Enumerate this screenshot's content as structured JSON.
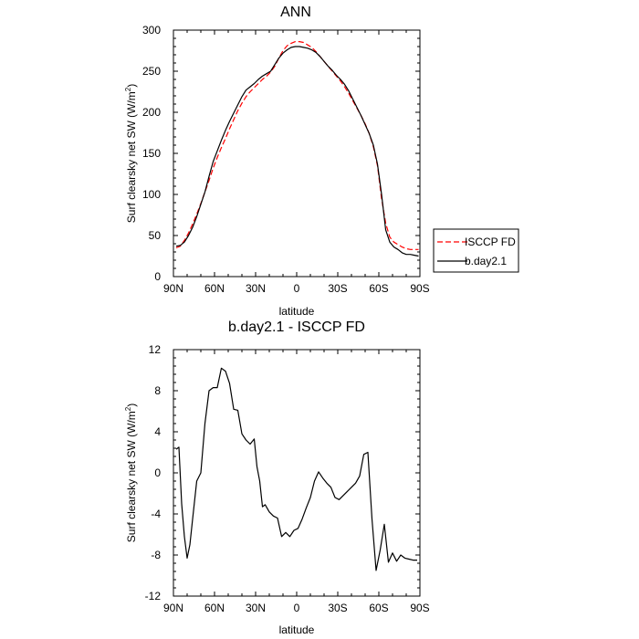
{
  "chart_data": [
    {
      "type": "line",
      "title": "ANN",
      "xlabel": "latitude",
      "ylabel_main": "Surf clearsky net SW (W/m",
      "ylabel_sup": "2",
      "ylabel_tail": ")",
      "xlim": [
        -90,
        90
      ],
      "ylim": [
        0,
        300
      ],
      "xticks": [
        -90,
        -60,
        -30,
        0,
        30,
        60,
        90
      ],
      "xtick_labels": [
        "90N",
        "60N",
        "30N",
        "0",
        "30S",
        "60S",
        "90S"
      ],
      "yticks": [
        0,
        50,
        100,
        150,
        200,
        250,
        300
      ],
      "ytick_labels": [
        "0",
        "50",
        "100",
        "150",
        "200",
        "250",
        "300"
      ],
      "series": [
        {
          "name": "ISCCP FD",
          "color": "#ff0000",
          "dash": "dashed",
          "x": [
            -88,
            -85,
            -82,
            -79,
            -76,
            -73,
            -70,
            -67,
            -64,
            -61,
            -58,
            -55,
            -52,
            -49,
            -46,
            -43,
            -40,
            -37,
            -34,
            -31,
            -28,
            -25,
            -22,
            -19,
            -16,
            -13,
            -10,
            -7,
            -4,
            -1,
            2,
            5,
            8,
            11,
            14,
            17,
            20,
            23,
            26,
            29,
            32,
            35,
            38,
            41,
            44,
            47,
            50,
            53,
            56,
            59,
            62,
            65,
            68,
            71,
            74,
            77,
            80,
            83,
            86,
            89
          ],
          "y": [
            35,
            37,
            44,
            53,
            64,
            76,
            89,
            103,
            117,
            132,
            145,
            157,
            168,
            180,
            191,
            202,
            211,
            219,
            225,
            230,
            235,
            240,
            244,
            249,
            256,
            266,
            275,
            281,
            284,
            286,
            286,
            285,
            282,
            279,
            274,
            268,
            262,
            256,
            250,
            244,
            238,
            231,
            223,
            214,
            205,
            196,
            186,
            174,
            158,
            135,
            95,
            65,
            48,
            42,
            39,
            36,
            34,
            33,
            33,
            33
          ]
        },
        {
          "name": "b.day2.1",
          "color": "#000000",
          "dash": "solid",
          "x": [
            -88,
            -85,
            -82,
            -79,
            -76,
            -73,
            -70,
            -67,
            -64,
            -61,
            -58,
            -55,
            -52,
            -49,
            -46,
            -43,
            -40,
            -37,
            -34,
            -31,
            -28,
            -25,
            -22,
            -19,
            -16,
            -13,
            -10,
            -7,
            -4,
            -1,
            2,
            5,
            8,
            11,
            14,
            17,
            20,
            23,
            26,
            29,
            32,
            35,
            38,
            41,
            44,
            47,
            50,
            53,
            56,
            59,
            62,
            65,
            68,
            71,
            74,
            77,
            80,
            83,
            86,
            89
          ],
          "y": [
            37,
            38,
            42,
            50,
            60,
            73,
            88,
            103,
            122,
            140,
            153,
            166,
            178,
            189,
            199,
            209,
            219,
            227,
            231,
            235,
            240,
            244,
            247,
            250,
            258,
            266,
            272,
            276,
            279,
            280,
            280,
            279,
            278,
            276,
            273,
            268,
            262,
            256,
            251,
            245,
            240,
            234,
            226,
            216,
            206,
            196,
            185,
            174,
            160,
            137,
            100,
            57,
            42,
            36,
            33,
            29,
            27,
            27,
            26,
            25
          ]
        }
      ],
      "legend": [
        "ISCCP FD",
        "b.day2.1"
      ],
      "legend_position": "right, outside plot"
    },
    {
      "type": "line",
      "title": "b.day2.1 - ISCCP FD",
      "xlabel": "latitude",
      "ylabel_main": "Surf clearsky net SW (W/m",
      "ylabel_sup": "2",
      "ylabel_tail": ")",
      "xlim": [
        -90,
        90
      ],
      "ylim": [
        -12,
        12
      ],
      "xticks": [
        -90,
        -60,
        -30,
        0,
        30,
        60,
        90
      ],
      "xtick_labels": [
        "90N",
        "60N",
        "30N",
        "0",
        "30S",
        "60S",
        "90S"
      ],
      "yticks": [
        -12,
        -8,
        -4,
        0,
        4,
        8,
        12
      ],
      "ytick_labels": [
        "-12",
        "-8",
        "-4",
        "0",
        "4",
        "8",
        "12"
      ],
      "series": [
        {
          "name": "b.day2.1 - ISCCP FD",
          "color": "#000000",
          "dash": "solid",
          "x": [
            -88,
            -86,
            -84,
            -82,
            -80,
            -78,
            -76,
            -73,
            -70,
            -67,
            -64,
            -61,
            -58,
            -55,
            -52,
            -49,
            -46,
            -43,
            -40,
            -37,
            -34,
            -31,
            -29,
            -27,
            -25,
            -23,
            -20,
            -17,
            -14,
            -11,
            -8,
            -5,
            -2,
            1,
            4,
            7,
            10,
            13,
            16,
            19,
            22,
            25,
            28,
            31,
            34,
            37,
            40,
            43,
            46,
            49,
            52,
            55,
            58,
            61,
            64,
            67,
            70,
            73,
            76,
            79,
            82,
            85,
            88
          ],
          "y": [
            2.3,
            2.5,
            -3,
            -6.2,
            -8.3,
            -7,
            -4.5,
            -0.8,
            0,
            4.8,
            8,
            8.3,
            8.3,
            10.2,
            9.9,
            8.7,
            6.2,
            6.1,
            3.8,
            3.2,
            2.8,
            3.3,
            0.6,
            -0.8,
            -3.3,
            -3.1,
            -3.8,
            -4.2,
            -4.4,
            -6.2,
            -5.8,
            -6.2,
            -5.6,
            -5.4,
            -4.5,
            -3.4,
            -2.4,
            -0.8,
            0.1,
            -0.5,
            -1.0,
            -1.4,
            -2.4,
            -2.6,
            -2.2,
            -1.8,
            -1.4,
            -1.0,
            -0.3,
            1.8,
            2.0,
            -4.5,
            -9.5,
            -7.5,
            -5.0,
            -8.7,
            -7.8,
            -8.6,
            -8.0,
            -8.3,
            -8.4,
            -8.5,
            -8.5
          ]
        }
      ]
    }
  ]
}
